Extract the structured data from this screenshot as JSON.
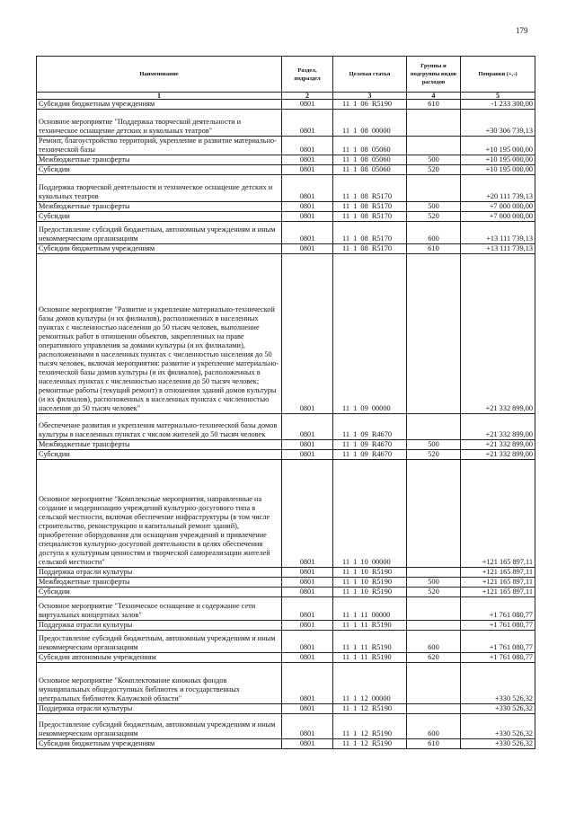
{
  "page_number": "179",
  "table": {
    "headers": [
      "Наименование",
      "Раздел, подраздел",
      "Целевая статья",
      "Группы и подгруппы видов расходов",
      "Поправки (+,-)"
    ],
    "column_numbers": [
      "1",
      "2",
      "3",
      "4",
      "5"
    ],
    "rows": [
      {
        "name": "Субсидии бюджетным учреждениям",
        "section": "0801",
        "target": "11  1  06  R5190",
        "group": "610",
        "amount": "-1 233 300,00"
      },
      {
        "name": "Основное мероприятие \"Поддержка творческой деятельности и техническое оснащение детских и кукольных театров\"",
        "section": "0801",
        "target": "11  1  08  00000",
        "group": "",
        "amount": "+30 306 739,13"
      },
      {
        "name": "Ремонт, благоустройство территорий, укрепление и развитие материально-технической базы",
        "section": "0801",
        "target": "11  1  08  05060",
        "group": "",
        "amount": "+10 195 000,00"
      },
      {
        "name": "Межбюджетные трансферты",
        "section": "0801",
        "target": "11  1  08  05060",
        "group": "500",
        "amount": "+10 195 000,00"
      },
      {
        "name": "Субсидии",
        "section": "0801",
        "target": "11  1  08  05060",
        "group": "520",
        "amount": "+10 195 000,00"
      },
      {
        "name": "Поддержка творческой деятельности и техническое оснащение детских и кукольных театров",
        "section": "0801",
        "target": "11  1  08  R5170",
        "group": "",
        "amount": "+20 111 739,13"
      },
      {
        "name": "Межбюджетные трансферты",
        "section": "0801",
        "target": "11  1  08  R5170",
        "group": "500",
        "amount": "+7 000 000,00"
      },
      {
        "name": "Субсидии",
        "section": "0801",
        "target": "11  1  08  R5170",
        "group": "520",
        "amount": "+7 000 000,00"
      },
      {
        "name": "Предоставление субсидий бюджетным, автономным учреждениям и иным некоммерческим организациям",
        "section": "0801",
        "target": "11  1  08  R5170",
        "group": "600",
        "amount": "+13 111 739,13"
      },
      {
        "name": "Субсидии бюджетным учреждениям",
        "section": "0801",
        "target": "11  1  08  R5170",
        "group": "610",
        "amount": "+13 111 739,13"
      },
      {
        "name": "Основное мероприятие \"Развитие и укрепление материально-технической базы домов культуры (и их филиалов), расположенных в населенных пунктах с численностью населения до 50 тысяч человек, выполнение ремонтных работ в отношении объектов, закрепленных на праве оперативного управления за домами культуры (и их филиалами), расположенными в населенных пунктах с численностью населения до 50 тысяч человек, включая мероприятия: развитие и укрепление материально-технической базы домов культуры (и их филиалов), расположенных в населенных пунктах с численностью населения до 50 тысяч человек; ремонтные работы (текущий ремонт) в отношении зданий домов культуры (и их филиалов), расположенных в населенных пунктах с численностью населения до 50 тысяч человек\"",
        "section": "0801",
        "target": "11  1  09  00000",
        "group": "",
        "amount": "+21 332 899,00"
      },
      {
        "name": "Обеспечение развития и укрепления материально-технической базы домов культуры в населенных пунктах с числом жителей до 50 тысяч человек",
        "section": "0801",
        "target": "11  1  09  R4670",
        "group": "",
        "amount": "+21 332 899,00"
      },
      {
        "name": "Межбюджетные трансферты",
        "section": "0801",
        "target": "11  1  09  R4670",
        "group": "500",
        "amount": "+21 332 899,00"
      },
      {
        "name": "Субсидии",
        "section": "0801",
        "target": "11  1  09  R4670",
        "group": "520",
        "amount": "+21 332 899,00"
      },
      {
        "name": "Основное мероприятие \"Комплексные мероприятия, направленные на создание и модернизацию учреждений культурно-досугового типа в сельской местности, включая обеспечение инфраструктуры (в том числе строительство, реконструкцию и капитальный ремонт зданий), приобретение оборудования для оснащения учреждений и привлечение специалистов культурно-досуговой деятельности в целях обеспечения доступа к культурным ценностям и творческой самореализации жителей сельской местности\"",
        "section": "0801",
        "target": "11  1  10  00000",
        "group": "",
        "amount": "+121 165 897,11"
      },
      {
        "name": "Поддержка отрасли культуры",
        "section": "0801",
        "target": "11  1  10  R5190",
        "group": "",
        "amount": "+121 165 897,11"
      },
      {
        "name": "Межбюджетные трансферты",
        "section": "0801",
        "target": "11  1  10  R5190",
        "group": "500",
        "amount": "+121 165 897,11"
      },
      {
        "name": "Субсидии",
        "section": "0801",
        "target": "11  1  10  R5190",
        "group": "520",
        "amount": "+121 165 897,11"
      },
      {
        "name": "Основное мероприятие \"Техническое оснащение и содержание сети виртуальных концертных залов\"",
        "section": "0801",
        "target": "11  1  11  00000",
        "group": "",
        "amount": "+1 761 080,77"
      },
      {
        "name": "Поддержка отрасли культуры",
        "section": "0801",
        "target": "11  1  11  R5190",
        "group": "",
        "amount": "+1 761 080,77"
      },
      {
        "name": "Предоставление субсидий бюджетным, автономным учреждениям и иным некоммерческим организациям",
        "section": "0801",
        "target": "11  1  11  R5190",
        "group": "600",
        "amount": "+1 761 080,77"
      },
      {
        "name": "Субсидии автономным учреждениям",
        "section": "0801",
        "target": "11  1  11  R5190",
        "group": "620",
        "amount": "+1 761 080,77"
      },
      {
        "name": "Основное мероприятие \"Комплектование книжных фондов муниципальных общедоступных библиотек и государственных центральных библиотек Калужской области\"",
        "section": "0801",
        "target": "11  1  12  00000",
        "group": "",
        "amount": "+330 526,32"
      },
      {
        "name": "Поддержка отрасли культуры",
        "section": "0801",
        "target": "11  1  12  R5190",
        "group": "",
        "amount": "+330 526,32"
      },
      {
        "name": "Предоставление субсидий бюджетным, автономным учреждениям и иным некоммерческим организациям",
        "section": "0801",
        "target": "11  1  12  R5190",
        "group": "600",
        "amount": "+330 526,32"
      },
      {
        "name": "Субсидии бюджетным учреждениям",
        "section": "0801",
        "target": "11  1  12  R5190",
        "group": "610",
        "amount": "+330 526,32"
      }
    ]
  }
}
